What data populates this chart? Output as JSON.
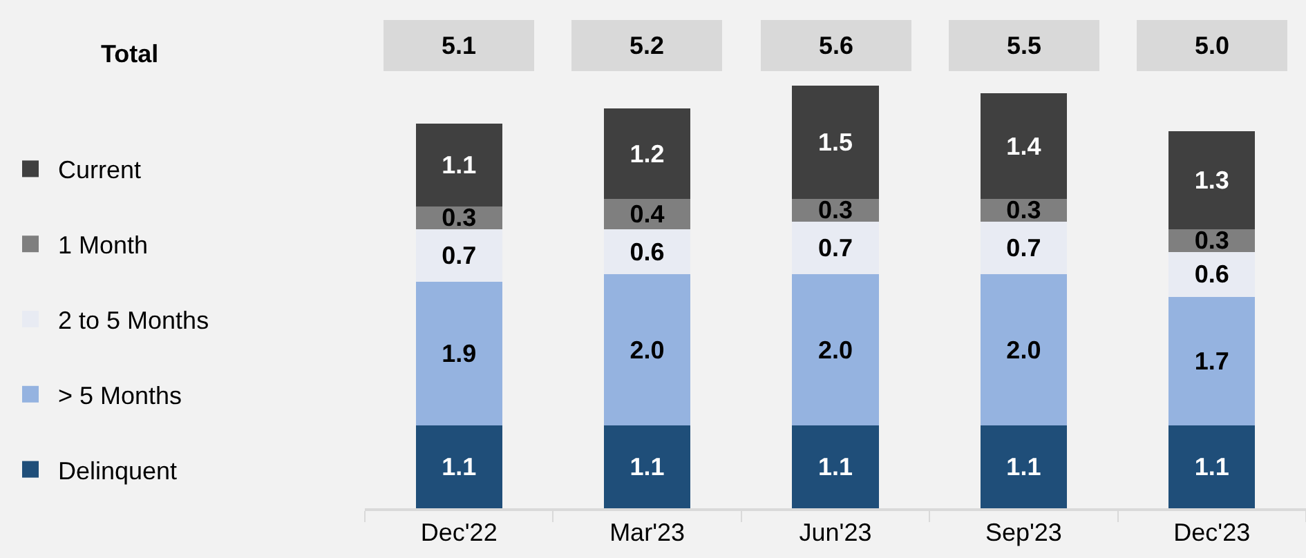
{
  "chart_data": {
    "type": "bar",
    "stacked": true,
    "categories": [
      "Dec'22",
      "Mar'23",
      "Jun'23",
      "Sep'23",
      "Dec'23"
    ],
    "series": [
      {
        "name": "Delinquent",
        "color": "#1f4e79",
        "values": [
          1.1,
          1.1,
          1.1,
          1.1,
          1.1
        ],
        "value_labels": [
          "1.1",
          "1.1",
          "1.1",
          "1.1",
          "1.1"
        ]
      },
      {
        "name": "> 5 Months",
        "color": "#95b3e0",
        "values": [
          1.9,
          2.0,
          2.0,
          2.0,
          1.7
        ],
        "value_labels": [
          "1.9",
          "2.0",
          "2.0",
          "2.0",
          "1.7"
        ]
      },
      {
        "name": "2 to 5 Months",
        "color": "#e8ebf3",
        "values": [
          0.7,
          0.6,
          0.7,
          0.7,
          0.6
        ],
        "value_labels": [
          "0.7",
          "0.6",
          "0.7",
          "0.7",
          "0.6"
        ]
      },
      {
        "name": "1 Month",
        "color": "#7f7f7f",
        "values": [
          0.3,
          0.4,
          0.3,
          0.3,
          0.3
        ],
        "value_labels": [
          "0.3",
          "0.4",
          "0.3",
          "0.3",
          "0.3"
        ]
      },
      {
        "name": "Current",
        "color": "#404040",
        "values": [
          1.1,
          1.2,
          1.5,
          1.4,
          1.3
        ],
        "value_labels": [
          "1.1",
          "1.2",
          "1.5",
          "1.4",
          "1.3"
        ]
      }
    ],
    "totals": [
      "5.1",
      "5.2",
      "5.6",
      "5.5",
      "5.0"
    ],
    "annotations": [
      "Total"
    ],
    "legend": "left",
    "tick_labels": "x"
  }
}
